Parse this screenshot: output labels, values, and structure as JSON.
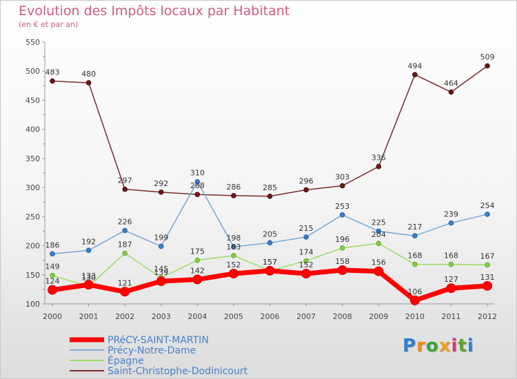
{
  "title": "Evolution des Impôts locaux par Habitant",
  "subtitle": "(en € et par an)",
  "logo_text": "Proxiti",
  "chart_data": {
    "type": "line",
    "title": "Evolution des Impôts locaux par Habitant",
    "subtitle": "(en € et par an)",
    "xlabel": "",
    "ylabel": "",
    "x": [
      "2000",
      "2001",
      "2002",
      "2003",
      "2004",
      "2005",
      "2006",
      "2007",
      "2008",
      "2009",
      "2010",
      "2011",
      "2012"
    ],
    "ylim": [
      100,
      550
    ],
    "yticks": [
      100,
      150,
      200,
      250,
      300,
      350,
      400,
      450,
      500,
      550
    ],
    "grid": false,
    "legend_position": "bottom-left",
    "series": [
      {
        "name": "PRéCY-SAINT-MARTIN",
        "color": "#ff0000",
        "values": [
          124,
          133,
          121,
          139,
          142,
          152,
          157,
          152,
          158,
          156,
          106,
          127,
          131
        ],
        "labels": [
          "124",
          "133",
          "121",
          "139",
          "142",
          "152",
          "157",
          "152",
          "158",
          "156",
          "106",
          "127",
          "131"
        ]
      },
      {
        "name": "Précy-Notre-Dame",
        "color": "#7aa6d6",
        "values": [
          186,
          192,
          226,
          199,
          310,
          198,
          205,
          215,
          253,
          225,
          217,
          239,
          254
        ],
        "labels": [
          "186",
          "192",
          "226",
          "199",
          "310",
          "198",
          "205",
          "215",
          "253",
          "225",
          "217",
          "239",
          "254"
        ]
      },
      {
        "name": "Épagne",
        "color": "#99dd66",
        "values": [
          149,
          130,
          187,
          145,
          175,
          183,
          157,
          174,
          196,
          204,
          168,
          168,
          167
        ],
        "labels": [
          "149",
          "130",
          "187",
          "145",
          "175",
          "183",
          "157",
          "174",
          "196",
          "204",
          "168",
          "168",
          "167"
        ]
      },
      {
        "name": "Saint-Christophe-Dodinicourt",
        "color": "#7a2a2a",
        "values": [
          483,
          480,
          297,
          292,
          288,
          286,
          285,
          296,
          303,
          336,
          494,
          464,
          509
        ],
        "labels": [
          "483",
          "480",
          "297",
          "292",
          "288",
          "286",
          "285",
          "296",
          "303",
          "336",
          "494",
          "464",
          "509"
        ]
      }
    ]
  }
}
